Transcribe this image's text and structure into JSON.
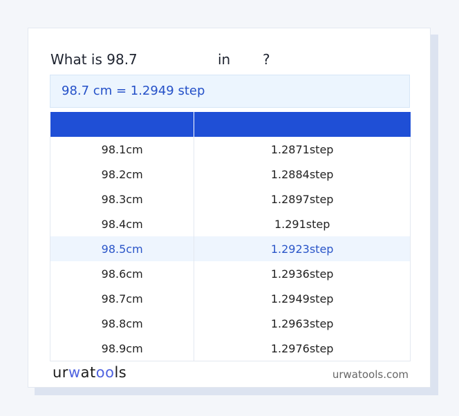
{
  "question": {
    "prefix": "What is 98.7",
    "middle": "in",
    "suffix": "?"
  },
  "result": "98.7 cm = 1.2949 step",
  "table": {
    "headers": [
      "",
      ""
    ],
    "rows": [
      [
        "98.1cm",
        "1.2871step"
      ],
      [
        "98.2cm",
        "1.2884step"
      ],
      [
        "98.3cm",
        "1.2897step"
      ],
      [
        "98.4cm",
        "1.291step"
      ],
      [
        "98.5cm",
        "1.2923step"
      ],
      [
        "98.6cm",
        "1.2936step"
      ],
      [
        "98.7cm",
        "1.2949step"
      ],
      [
        "98.8cm",
        "1.2963step"
      ],
      [
        "98.9cm",
        "1.2976step"
      ]
    ],
    "highlighted_row": 4
  },
  "footer": {
    "logo": "urwatools",
    "site": "urwatools.com"
  },
  "colors": {
    "accent": "#1f4fd6",
    "highlight_bg": "#eef5fe"
  }
}
